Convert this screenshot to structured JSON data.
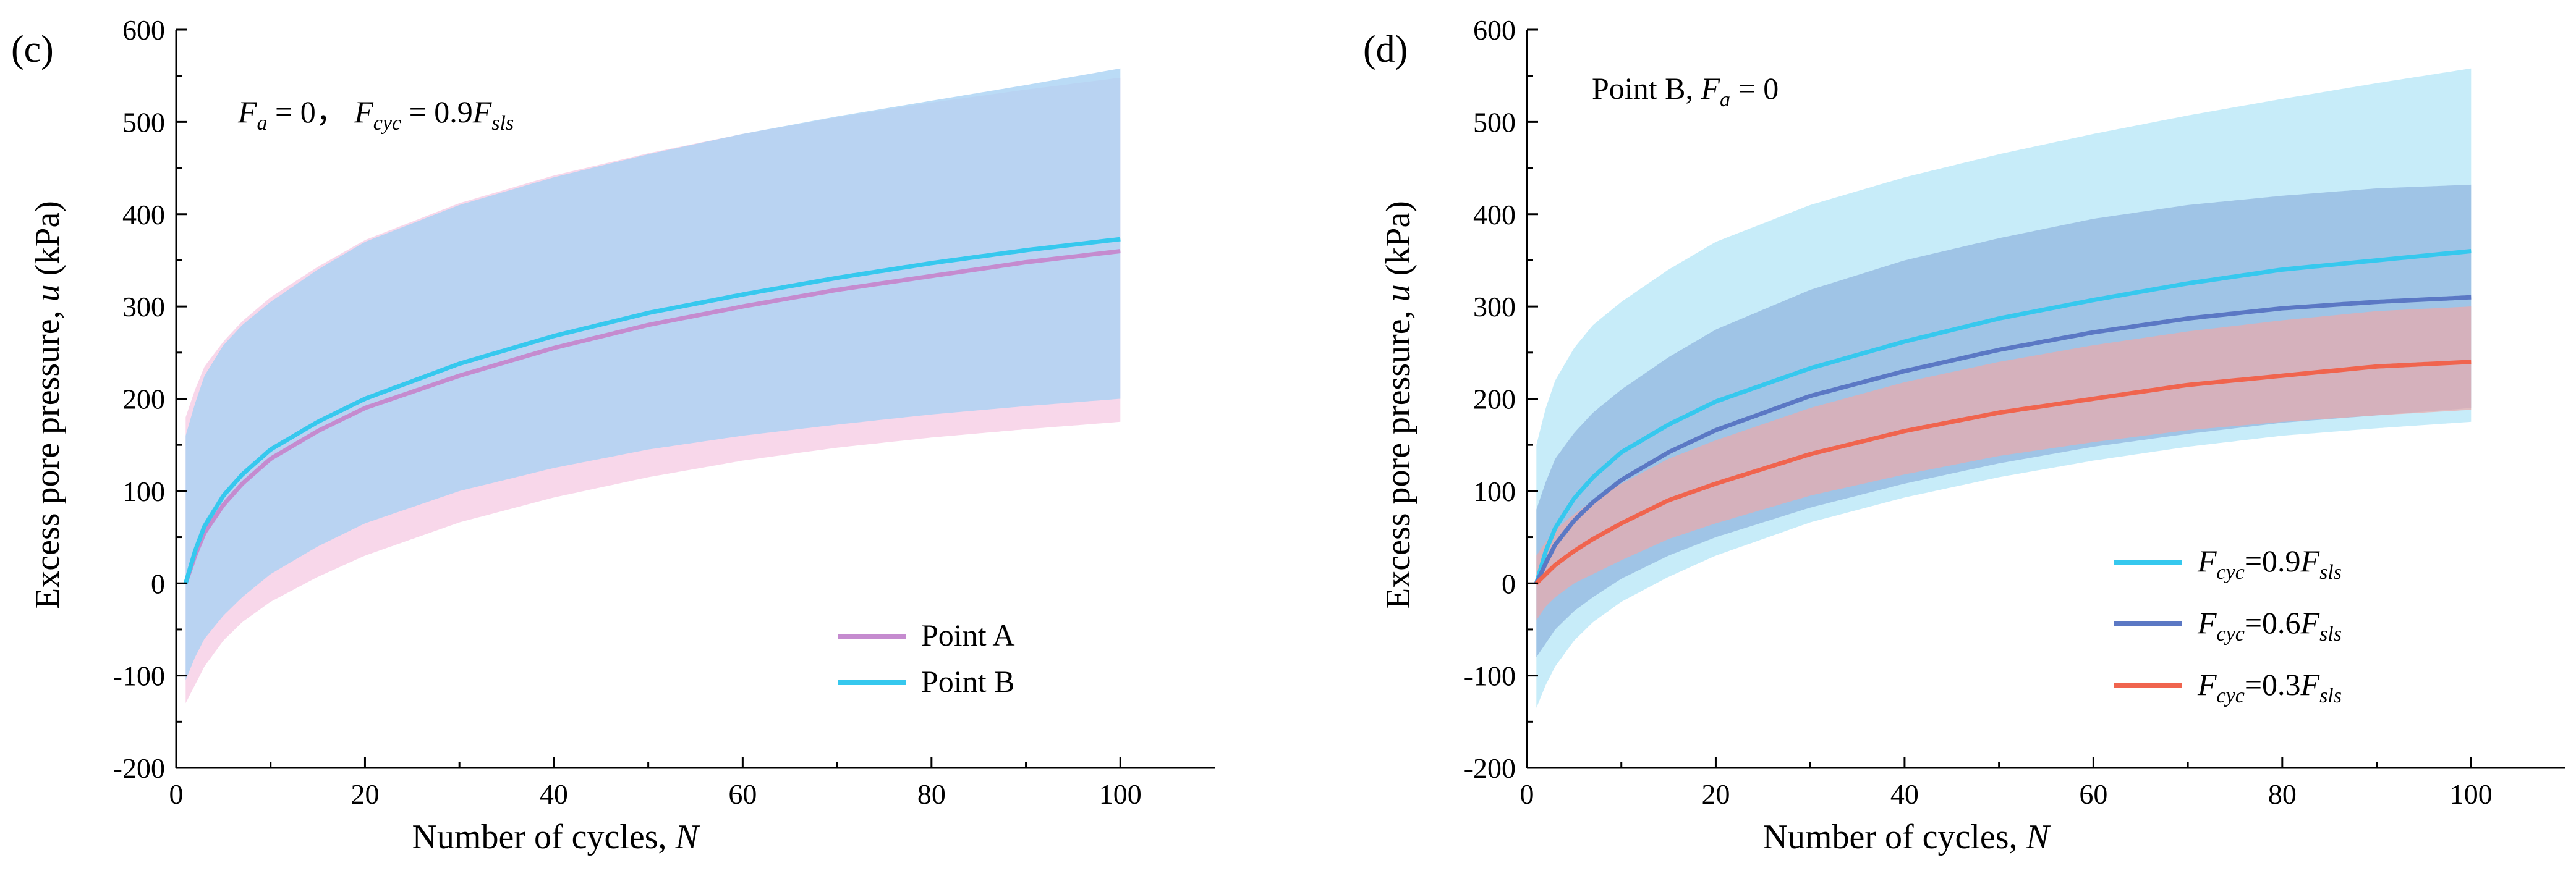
{
  "chart_data": [
    {
      "type": "line",
      "panel_label": "(c)",
      "annotation": {
        "f_a": "F",
        "f_a_sub": "a",
        "f_a_val": " = 0，",
        "f_cyc": "F",
        "f_cyc_sub": "cyc",
        "f_cyc_val": " = 0.9",
        "f_sls": "F",
        "f_sls_sub": "sls"
      },
      "xlabel": {
        "text": "Number of cycles, ",
        "var": "N"
      },
      "ylabel": {
        "text": "Excess pore pressure, ",
        "var": "u",
        "unit": " (kPa)"
      },
      "xlim": [
        0,
        110
      ],
      "ylim": [
        -200,
        600
      ],
      "xticks": [
        0,
        20,
        40,
        60,
        80,
        100
      ],
      "yticks": [
        -200,
        -100,
        0,
        100,
        200,
        300,
        400,
        500,
        600
      ],
      "legend": {
        "position": "bottom-right"
      },
      "x": [
        1,
        2,
        3,
        5,
        7,
        10,
        15,
        20,
        30,
        40,
        50,
        60,
        70,
        80,
        90,
        100
      ],
      "series": [
        {
          "name": "Point A",
          "color": "#c58bcf",
          "band_color": "#f6c9e3",
          "mean": [
            0,
            30,
            55,
            85,
            108,
            135,
            165,
            190,
            225,
            255,
            280,
            300,
            318,
            333,
            348,
            360
          ],
          "upper": [
            180,
            210,
            235,
            262,
            284,
            310,
            343,
            372,
            412,
            442,
            466,
            487,
            505,
            521,
            535,
            548
          ],
          "lower": [
            -130,
            -110,
            -90,
            -62,
            -42,
            -20,
            7,
            30,
            66,
            93,
            115,
            133,
            147,
            158,
            167,
            175
          ]
        },
        {
          "name": "Point B",
          "color": "#36c8ee",
          "band_color": "#a9d2f4",
          "mean": [
            0,
            35,
            62,
            95,
            118,
            145,
            175,
            200,
            238,
            268,
            293,
            313,
            331,
            347,
            361,
            373
          ],
          "upper": [
            160,
            195,
            225,
            258,
            280,
            305,
            340,
            370,
            410,
            440,
            465,
            487,
            506,
            523,
            540,
            558
          ],
          "lower": [
            -105,
            -80,
            -60,
            -35,
            -15,
            10,
            40,
            65,
            100,
            125,
            145,
            160,
            172,
            183,
            192,
            200
          ]
        }
      ]
    },
    {
      "type": "line",
      "panel_label": "(d)",
      "annotation": {
        "prefix": "Point B,  ",
        "f_a": "F",
        "f_a_sub": "a",
        "f_a_val": " = 0"
      },
      "xlabel": {
        "text": "Number of cycles, ",
        "var": "N"
      },
      "ylabel": {
        "text": "Excess pore pressure, ",
        "var": "u",
        "unit": " (kPa)"
      },
      "xlim": [
        0,
        110
      ],
      "ylim": [
        -200,
        600
      ],
      "xticks": [
        0,
        20,
        40,
        60,
        80,
        100
      ],
      "yticks": [
        -200,
        -100,
        0,
        100,
        200,
        300,
        400,
        500,
        600
      ],
      "legend": {
        "position": "bottom-right"
      },
      "x": [
        1,
        2,
        3,
        5,
        7,
        10,
        15,
        20,
        30,
        40,
        50,
        60,
        70,
        80,
        90,
        100
      ],
      "series": [
        {
          "name": "Fcyc=0.9Fsls",
          "label_parts": {
            "var": "F",
            "sub": "cyc",
            "mid": "=0.9",
            "var2": "F",
            "sub2": "sls"
          },
          "color": "#36c8ee",
          "band_color": "#bde9f8",
          "mean": [
            0,
            35,
            60,
            92,
            115,
            142,
            172,
            197,
            233,
            262,
            287,
            307,
            325,
            340,
            350,
            360
          ],
          "upper": [
            150,
            190,
            220,
            255,
            280,
            305,
            340,
            370,
            410,
            440,
            465,
            487,
            507,
            525,
            542,
            558
          ],
          "lower": [
            -135,
            -110,
            -90,
            -62,
            -42,
            -20,
            7,
            30,
            66,
            93,
            115,
            133,
            148,
            160,
            168,
            175
          ]
        },
        {
          "name": "Fcyc=0.6Fsls",
          "label_parts": {
            "var": "F",
            "sub": "cyc",
            "mid": "=0.6",
            "var2": "F",
            "sub2": "sls"
          },
          "color": "#5b78c4",
          "band_color": "#8fb3de",
          "mean": [
            0,
            22,
            42,
            68,
            88,
            112,
            142,
            166,
            203,
            230,
            253,
            272,
            287,
            298,
            305,
            310
          ],
          "upper": [
            80,
            110,
            135,
            163,
            185,
            210,
            245,
            275,
            318,
            350,
            374,
            395,
            410,
            420,
            428,
            432
          ],
          "lower": [
            -80,
            -65,
            -50,
            -30,
            -15,
            5,
            30,
            50,
            82,
            108,
            130,
            148,
            162,
            174,
            182,
            190
          ]
        },
        {
          "name": "Fcyc=0.3Fsls",
          "label_parts": {
            "var": "F",
            "sub": "cyc",
            "mid": "=0.3",
            "var2": "F",
            "sub2": "sls"
          },
          "color": "#f0644e",
          "band_color": "#ecaaaa",
          "mean": [
            0,
            10,
            20,
            35,
            48,
            65,
            90,
            108,
            140,
            165,
            185,
            200,
            215,
            225,
            235,
            240
          ],
          "upper": [
            30,
            45,
            58,
            75,
            90,
            108,
            135,
            155,
            190,
            218,
            240,
            258,
            273,
            285,
            295,
            300
          ],
          "lower": [
            -40,
            -25,
            -15,
            0,
            10,
            25,
            48,
            65,
            95,
            118,
            138,
            153,
            166,
            175,
            182,
            188
          ]
        }
      ]
    }
  ]
}
